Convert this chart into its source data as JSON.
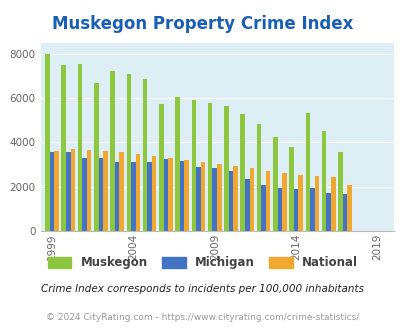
{
  "title": "Muskegon Property Crime Index",
  "subtitle": "Crime Index corresponds to incidents per 100,000 inhabitants",
  "footer": "© 2024 CityRating.com - https://www.cityrating.com/crime-statistics/",
  "years": [
    1999,
    2000,
    2001,
    2002,
    2003,
    2004,
    2005,
    2006,
    2007,
    2008,
    2009,
    2010,
    2011,
    2012,
    2013,
    2014,
    2015,
    2016,
    2017,
    2018,
    2019,
    2020,
    2021
  ],
  "muskegon": [
    8000,
    7500,
    7550,
    6700,
    7250,
    7100,
    6850,
    5750,
    6050,
    5900,
    5800,
    5650,
    5300,
    4850,
    4250,
    3800,
    5350,
    4500,
    3550,
    0,
    0,
    0,
    0
  ],
  "michigan": [
    3550,
    3550,
    3300,
    3300,
    3100,
    3100,
    3100,
    3250,
    3150,
    2900,
    2850,
    2700,
    2350,
    2100,
    1950,
    1900,
    1950,
    1700,
    1650,
    0,
    0,
    0,
    0
  ],
  "national": [
    3600,
    3700,
    3650,
    3600,
    3550,
    3500,
    3400,
    3300,
    3200,
    3100,
    3050,
    2950,
    2850,
    2700,
    2600,
    2550,
    2500,
    2450,
    2100,
    0,
    0,
    0,
    0
  ],
  "xtick_years": [
    1999,
    2004,
    2009,
    2014,
    2019
  ],
  "colors": {
    "muskegon": "#8dc63f",
    "michigan": "#4472c4",
    "national": "#f0a830",
    "background": "#ddeef5",
    "title": "#1a5fb4",
    "subtitle": "#222222",
    "footer": "#999999"
  },
  "ylim": [
    0,
    8500
  ],
  "yticks": [
    0,
    2000,
    4000,
    6000,
    8000
  ],
  "legend_labels": [
    "Muskegon",
    "Michigan",
    "National"
  ],
  "bar_width": 0.28
}
